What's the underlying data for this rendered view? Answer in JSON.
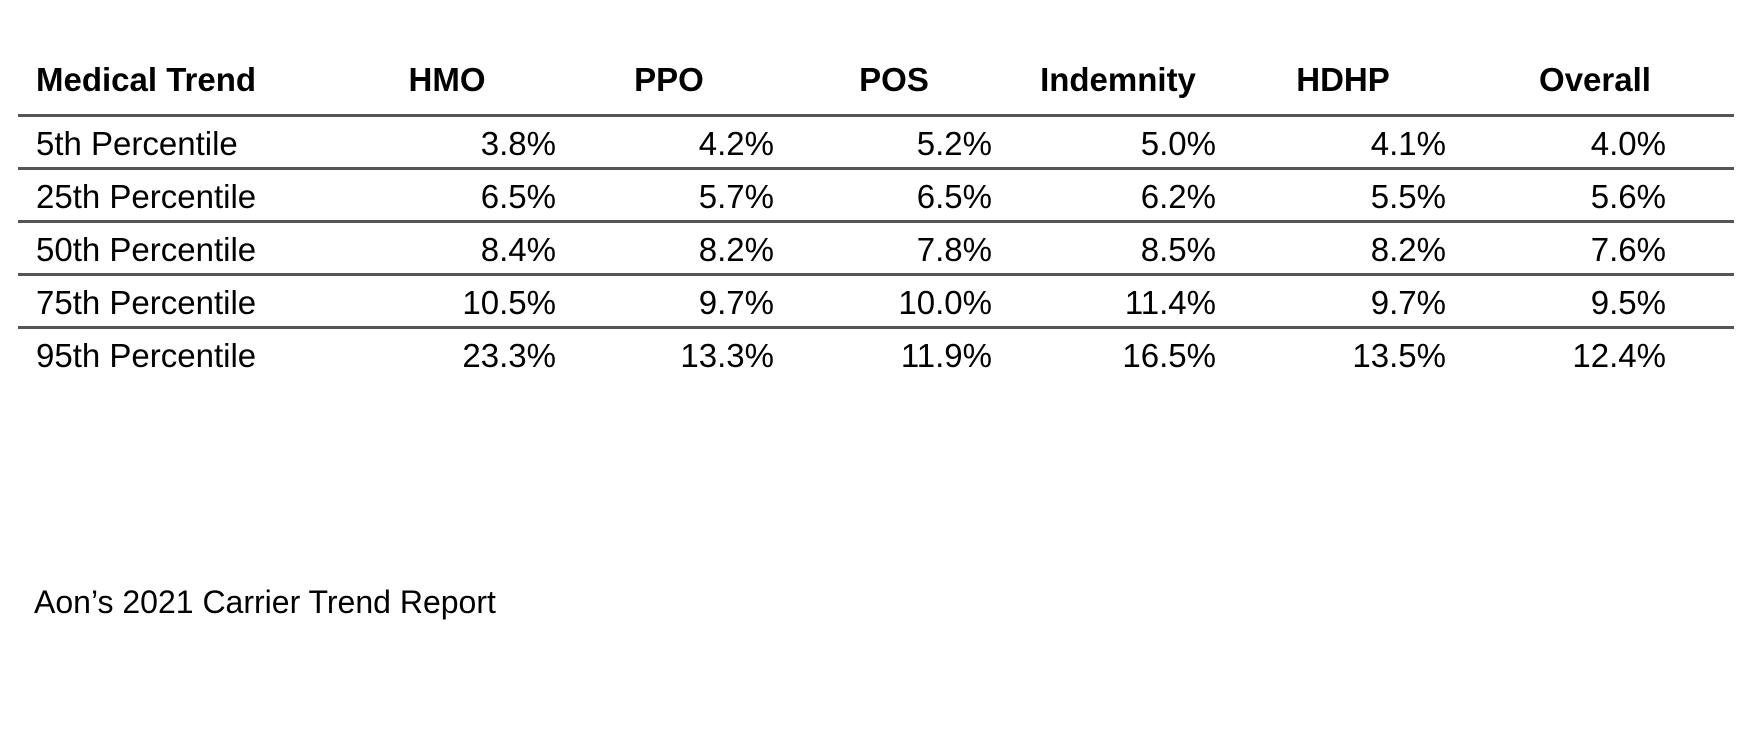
{
  "table": {
    "headers": [
      "Medical Trend",
      "HMO",
      "PPO",
      "POS",
      "Indemnity",
      "HDHP",
      "Overall"
    ],
    "rows": [
      {
        "label": "5th Percentile",
        "values": [
          "3.8%",
          "4.2%",
          "5.2%",
          "5.0%",
          "4.1%",
          "4.0%"
        ]
      },
      {
        "label": "25th Percentile",
        "values": [
          "6.5%",
          "5.7%",
          "6.5%",
          "6.2%",
          "5.5%",
          "5.6%"
        ]
      },
      {
        "label": "50th Percentile",
        "values": [
          "8.4%",
          "8.2%",
          "7.8%",
          "8.5%",
          "8.2%",
          "7.6%"
        ]
      },
      {
        "label": "75th Percentile",
        "values": [
          "10.5%",
          "9.7%",
          "10.0%",
          "11.4%",
          "9.7%",
          "9.5%"
        ]
      },
      {
        "label": "95th Percentile",
        "values": [
          "23.3%",
          "13.3%",
          "11.9%",
          "16.5%",
          "13.5%",
          "12.4%"
        ]
      }
    ]
  },
  "source": "Aon’s 2021 Carrier Trend Report"
}
